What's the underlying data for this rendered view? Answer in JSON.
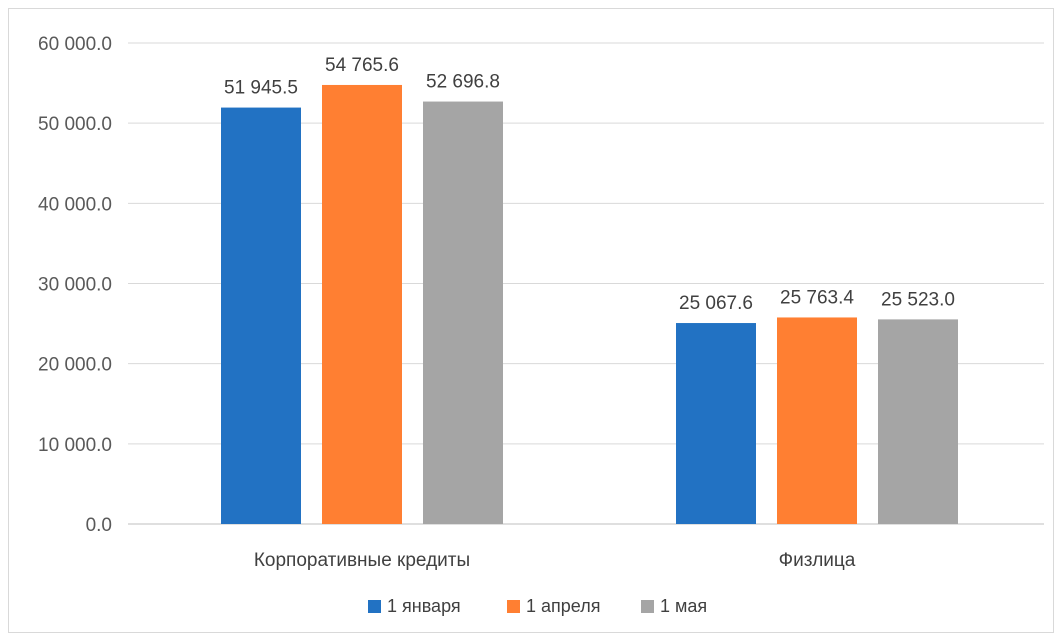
{
  "chart_data": {
    "type": "bar",
    "categories": [
      "Корпоративные кредиты",
      "Физлица"
    ],
    "series": [
      {
        "name": "1 января",
        "values": [
          51945.5,
          25067.6
        ],
        "labels": [
          "51 945.5",
          "25 067.6"
        ],
        "color": "#2272C3"
      },
      {
        "name": "1 апреля",
        "values": [
          54765.6,
          25763.4
        ],
        "labels": [
          "54 765.6",
          "25 763.4"
        ],
        "color": "#FF7F32"
      },
      {
        "name": "1 мая",
        "values": [
          52696.8,
          25523.0
        ],
        "labels": [
          "52 696.8",
          "25 523.0"
        ],
        "color": "#A5A5A5"
      }
    ],
    "y_ticks": [
      "0.0",
      "10 000.0",
      "20 000.0",
      "30 000.0",
      "40 000.0",
      "50 000.0",
      "60 000.0"
    ],
    "ylim": [
      0,
      60000
    ],
    "grid": true,
    "legend": "bottom",
    "title": "",
    "xlabel": "",
    "ylabel": ""
  }
}
